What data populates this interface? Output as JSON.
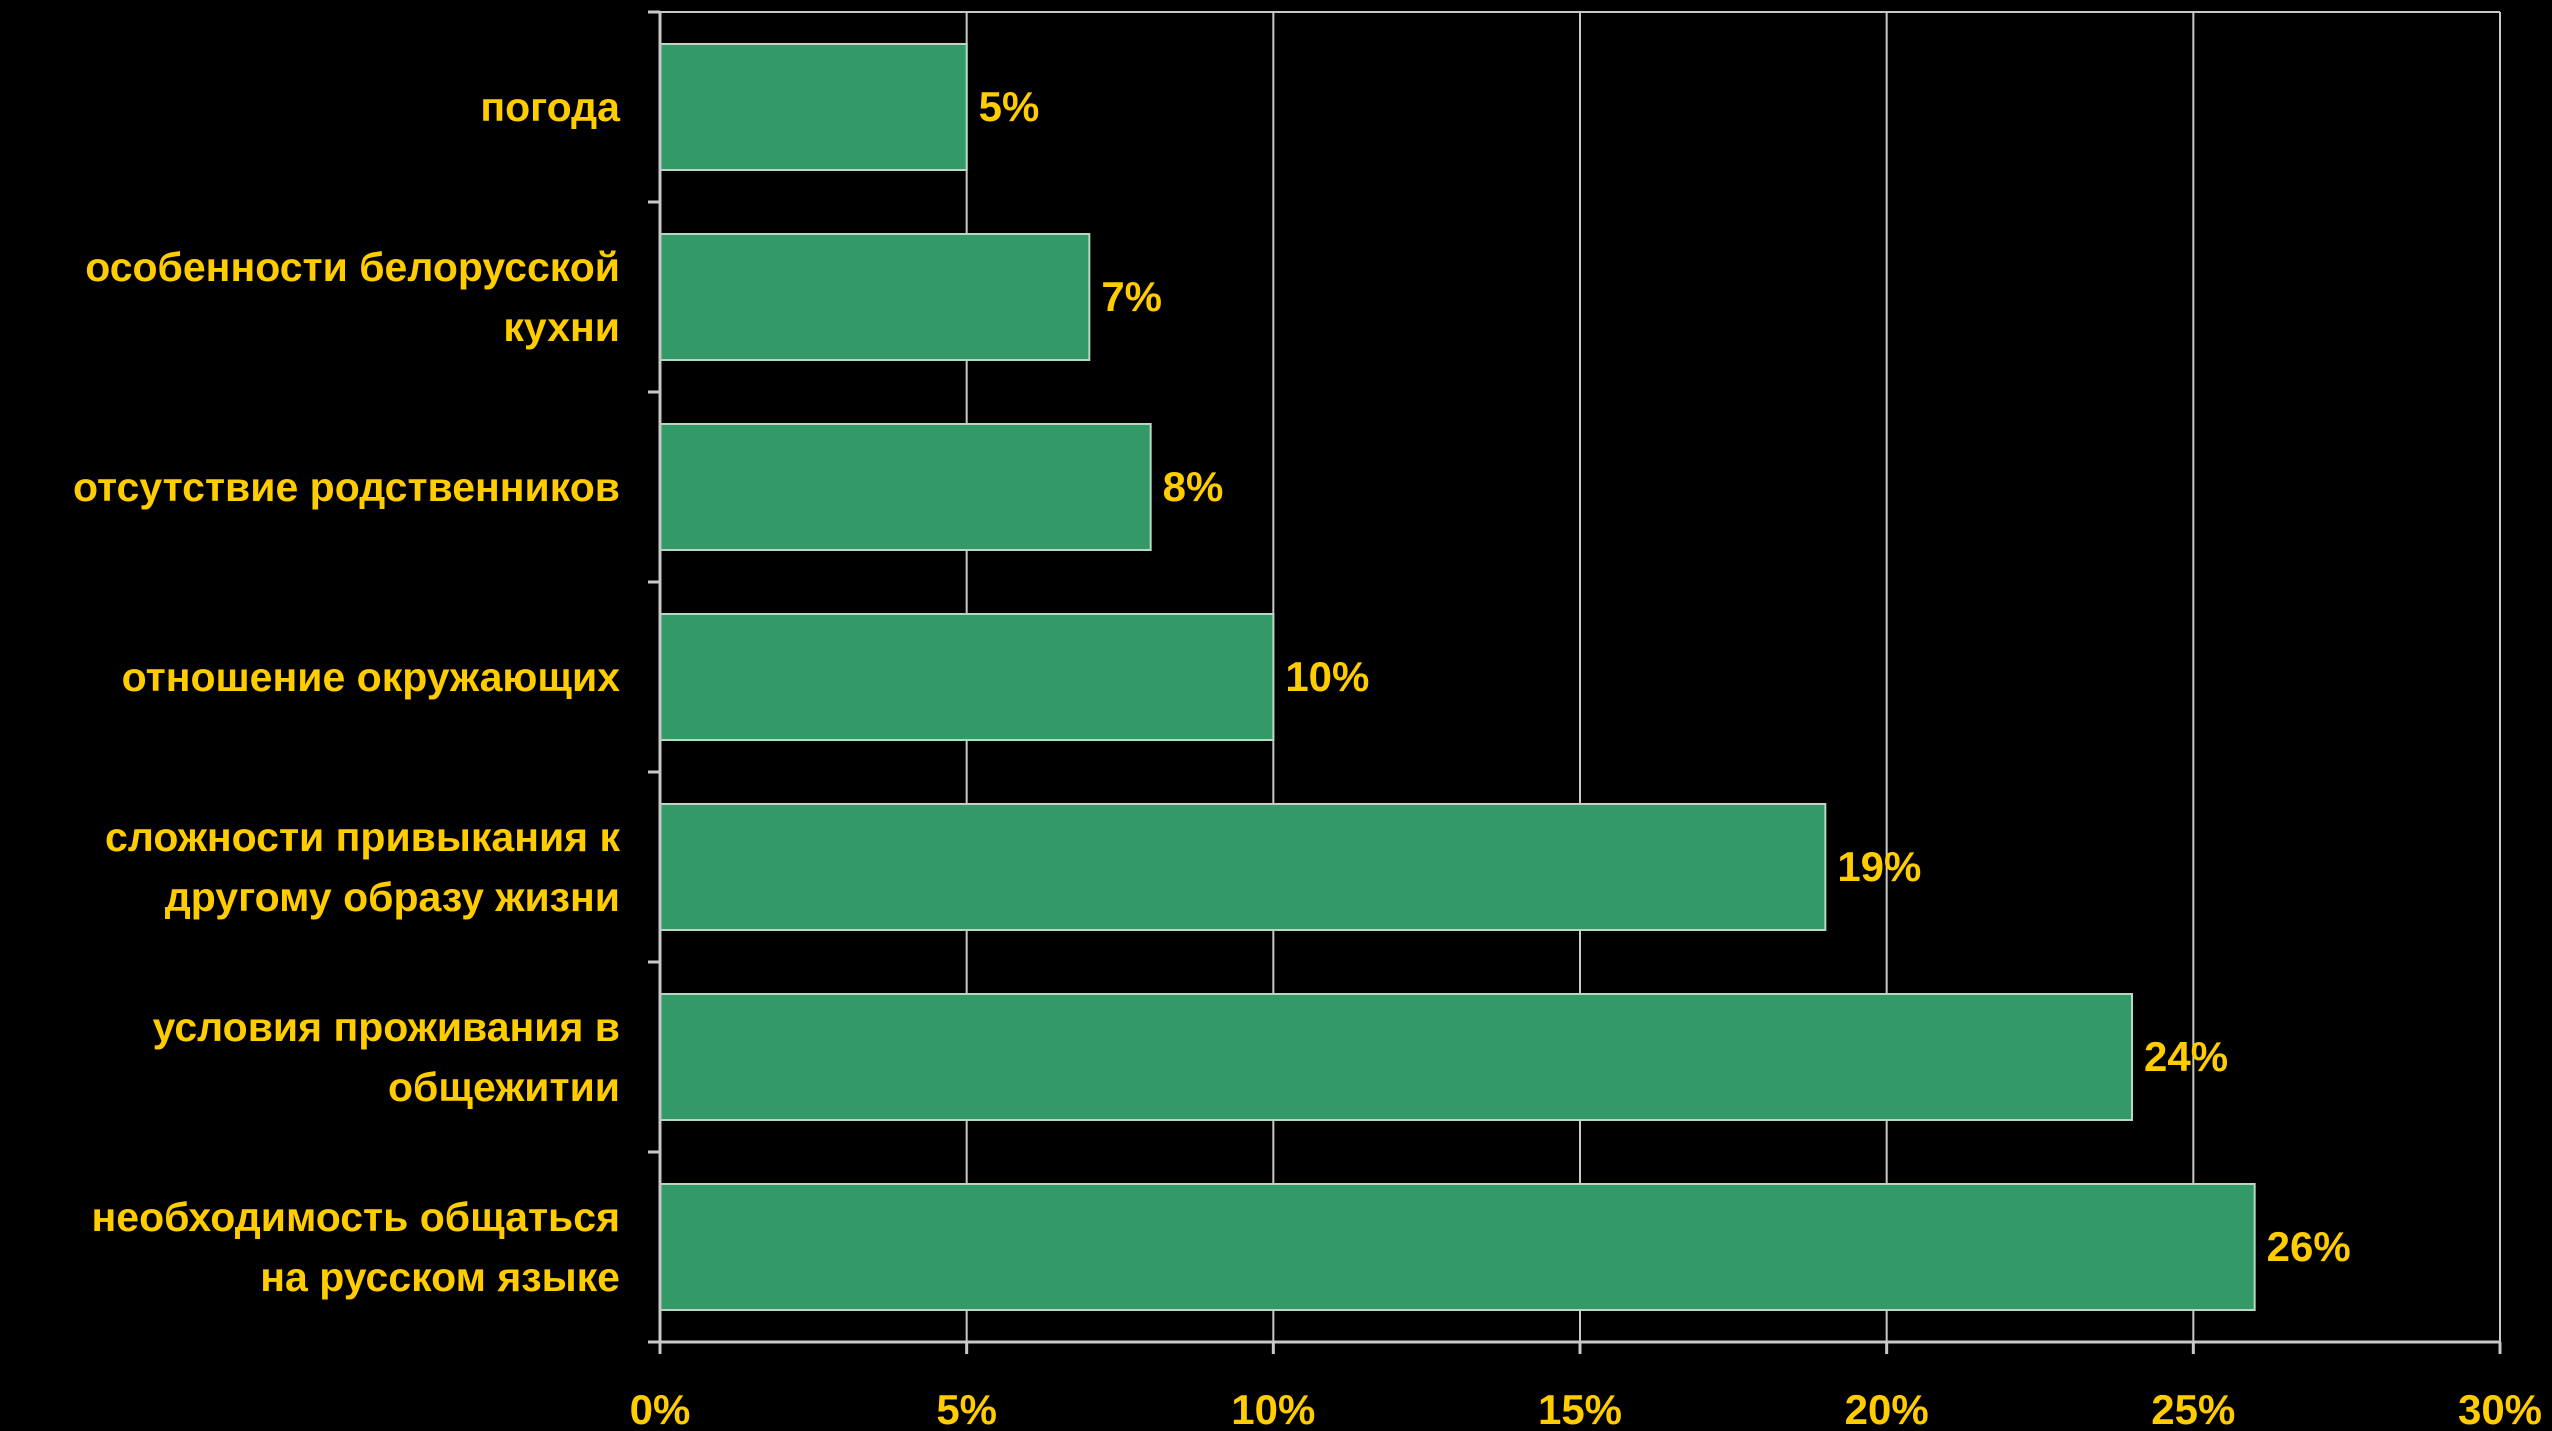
{
  "colors": {
    "background": "#000000",
    "bar_fill": "#339966",
    "bar_stroke": "#b8d8c4",
    "text": "#ffcc00",
    "gridline": "#c8c8c8",
    "axis": "#c8c8c8"
  },
  "chart_data": {
    "type": "bar",
    "orientation": "horizontal",
    "categories": [
      [
        "погода"
      ],
      [
        "особенности белорусской",
        "кухни"
      ],
      [
        "отсутствие родственников"
      ],
      [
        "отношение окружающих"
      ],
      [
        "сложности привыкания к",
        "другому образу жизни"
      ],
      [
        "условия проживания в",
        "общежитии"
      ],
      [
        "необходимость общаться",
        "на русском языке"
      ]
    ],
    "values": [
      5,
      7,
      8,
      10,
      19,
      24,
      26
    ],
    "value_labels": [
      "5%",
      "7%",
      "8%",
      "10%",
      "19%",
      "24%",
      "26%"
    ],
    "xlim": [
      0,
      30
    ],
    "xticks": [
      0,
      5,
      10,
      15,
      20,
      25,
      30
    ],
    "xtick_labels": [
      "0%",
      "5%",
      "10%",
      "15%",
      "20%",
      "25%",
      "30%"
    ],
    "grid": true,
    "legend": "none"
  }
}
